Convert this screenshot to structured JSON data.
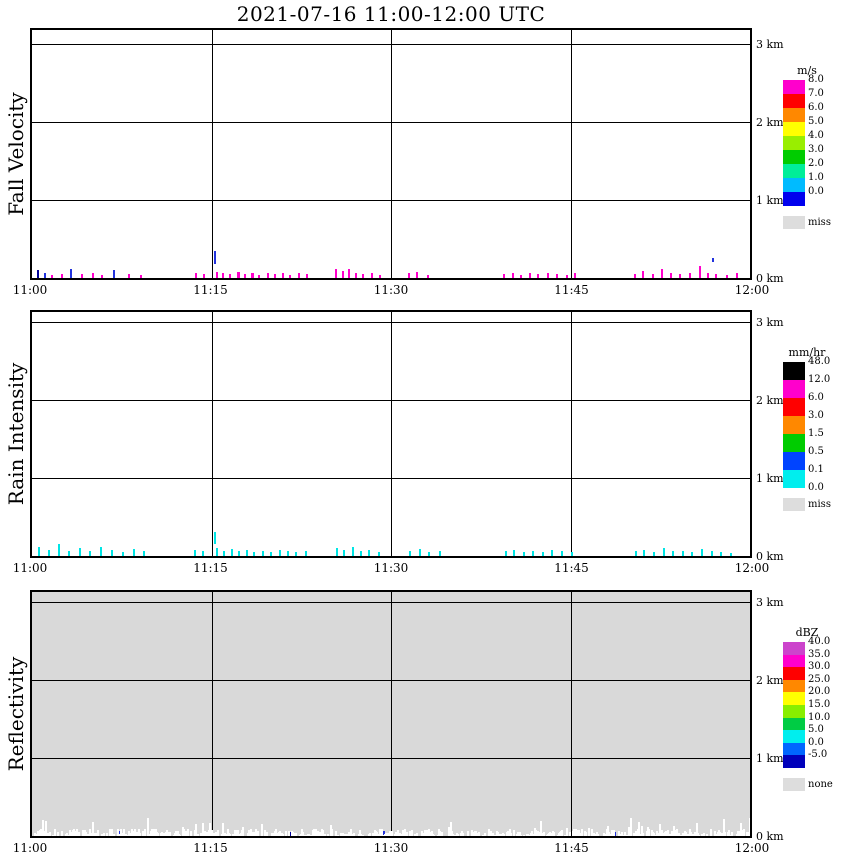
{
  "chart_data": {
    "type": "heatmap",
    "title": "2021-07-16  11:00-12:00 UTC",
    "x_axis": {
      "ticks": [
        {
          "min": 0,
          "label": "11:00"
        },
        {
          "min": 15,
          "label": "11:15"
        },
        {
          "min": 30,
          "label": "11:30"
        },
        {
          "min": 45,
          "label": "11:45"
        },
        {
          "min": 60,
          "label": "12:00"
        }
      ],
      "range_min": [
        0,
        60
      ]
    },
    "y_axis": {
      "ticks": [
        {
          "km": 3,
          "label": "3 km"
        },
        {
          "km": 2,
          "label": "2 km"
        },
        {
          "km": 1,
          "label": "1 km"
        },
        {
          "km": 0,
          "label": "0 km"
        }
      ],
      "range_km": [
        0,
        3
      ]
    },
    "panels": [
      {
        "id": "fall-velocity",
        "ylabel": "Fall Velocity",
        "bg": "#FFFFFF",
        "legend": {
          "header": "m/s",
          "colors": [
            "#FF00CC",
            "#FF0000",
            "#FF8800",
            "#FFFF00",
            "#99EE00",
            "#00CC00",
            "#00EE99",
            "#00BBFF",
            "#0000EE"
          ],
          "labels": [
            "8.0",
            "7.0",
            "6.0",
            "5.0",
            "4.0",
            "3.0",
            "2.0",
            "1.0",
            "0.0"
          ],
          "missing": {
            "label": "miss",
            "color": "#DDDDDD"
          }
        },
        "mark_colors": {
          "m": "#FF00CC",
          "b": "#2233DD",
          "n": "#000099"
        },
        "marks": [
          [
            0.4,
            0.1,
            "n"
          ],
          [
            1.0,
            0.06,
            "b"
          ],
          [
            1.6,
            0.04,
            "m"
          ],
          [
            2.4,
            0.05,
            "m"
          ],
          [
            3.2,
            0.12,
            "b"
          ],
          [
            4.1,
            0.05,
            "m"
          ],
          [
            5.0,
            0.07,
            "m"
          ],
          [
            5.8,
            0.04,
            "m"
          ],
          [
            6.8,
            0.1,
            "b"
          ],
          [
            8.0,
            0.05,
            "m"
          ],
          [
            9.0,
            0.04,
            "m"
          ],
          [
            13.6,
            0.06,
            "m"
          ],
          [
            14.3,
            0.05,
            "m"
          ],
          [
            15.2,
            0.35,
            "b",
            0.18
          ],
          [
            15.4,
            0.08,
            "m"
          ],
          [
            15.9,
            0.06,
            "m"
          ],
          [
            16.5,
            0.05,
            "m"
          ],
          [
            17.1,
            0.08,
            "m",
            0,
            3
          ],
          [
            17.7,
            0.05,
            "m"
          ],
          [
            18.3,
            0.06,
            "m",
            0,
            3
          ],
          [
            18.9,
            0.04,
            "m"
          ],
          [
            19.6,
            0.07,
            "m"
          ],
          [
            20.2,
            0.05,
            "m"
          ],
          [
            20.9,
            0.06,
            "m"
          ],
          [
            21.5,
            0.04,
            "m"
          ],
          [
            22.2,
            0.06,
            "m"
          ],
          [
            22.9,
            0.05,
            "m"
          ],
          [
            25.3,
            0.12,
            "m"
          ],
          [
            25.9,
            0.09,
            "m"
          ],
          [
            26.4,
            0.11,
            "m"
          ],
          [
            27.0,
            0.07,
            "m"
          ],
          [
            27.6,
            0.05,
            "m"
          ],
          [
            28.3,
            0.06,
            "m"
          ],
          [
            29.0,
            0.04,
            "m"
          ],
          [
            31.4,
            0.06,
            "m"
          ],
          [
            32.1,
            0.08,
            "m"
          ],
          [
            33.0,
            0.04,
            "m"
          ],
          [
            39.4,
            0.05,
            "m"
          ],
          [
            40.1,
            0.06,
            "m"
          ],
          [
            40.8,
            0.04,
            "m"
          ],
          [
            41.5,
            0.07,
            "m"
          ],
          [
            42.2,
            0.05,
            "m"
          ],
          [
            43.0,
            0.06,
            "m"
          ],
          [
            43.8,
            0.05,
            "m"
          ],
          [
            44.6,
            0.04,
            "m"
          ],
          [
            45.3,
            0.06,
            "m"
          ],
          [
            50.3,
            0.05,
            "m"
          ],
          [
            51.0,
            0.09,
            "m"
          ],
          [
            51.8,
            0.05,
            "m"
          ],
          [
            52.6,
            0.12,
            "m"
          ],
          [
            53.3,
            0.06,
            "m"
          ],
          [
            54.1,
            0.05,
            "m"
          ],
          [
            54.9,
            0.07,
            "m"
          ],
          [
            55.7,
            0.15,
            "m"
          ],
          [
            56.4,
            0.06,
            "m"
          ],
          [
            56.8,
            0.25,
            "b",
            0.2
          ],
          [
            57.1,
            0.05,
            "m"
          ],
          [
            58.0,
            0.04,
            "m"
          ],
          [
            58.8,
            0.06,
            "m"
          ]
        ]
      },
      {
        "id": "rain-intensity",
        "ylabel": "Rain Intensity",
        "bg": "#FFFFFF",
        "legend": {
          "header": "mm/hr",
          "colors": [
            "#000000",
            "#FF00CC",
            "#FF0000",
            "#FF8800",
            "#00CC00",
            "#0044FF",
            "#00EEEE"
          ],
          "labels": [
            "48.0",
            "12.0",
            "6.0",
            "3.0",
            "1.5",
            "0.5",
            "0.1",
            "0.0"
          ],
          "missing": {
            "label": "miss",
            "color": "#DDDDDD"
          }
        },
        "mark_colors": {
          "c": "#00E5E5",
          "b": "#2233DD"
        },
        "marks": [
          [
            0.5,
            0.12,
            "c"
          ],
          [
            1.3,
            0.08,
            "c"
          ],
          [
            2.2,
            0.15,
            "c"
          ],
          [
            3.0,
            0.06,
            "c"
          ],
          [
            3.9,
            0.1,
            "c"
          ],
          [
            4.8,
            0.07,
            "c"
          ],
          [
            5.7,
            0.12,
            "c"
          ],
          [
            6.6,
            0.08,
            "c"
          ],
          [
            7.5,
            0.05,
            "c"
          ],
          [
            8.4,
            0.09,
            "c"
          ],
          [
            9.3,
            0.06,
            "c"
          ],
          [
            13.5,
            0.08,
            "c"
          ],
          [
            14.2,
            0.06,
            "c"
          ],
          [
            15.2,
            0.3,
            "c",
            0.15
          ],
          [
            15.4,
            0.1,
            "c"
          ],
          [
            16.0,
            0.07,
            "c"
          ],
          [
            16.6,
            0.09,
            "c"
          ],
          [
            17.2,
            0.06,
            "c"
          ],
          [
            17.9,
            0.08,
            "c"
          ],
          [
            18.5,
            0.05,
            "c"
          ],
          [
            19.2,
            0.07,
            "c"
          ],
          [
            19.9,
            0.05,
            "c"
          ],
          [
            20.6,
            0.08,
            "c"
          ],
          [
            21.3,
            0.06,
            "c"
          ],
          [
            22.0,
            0.05,
            "c"
          ],
          [
            22.8,
            0.07,
            "c"
          ],
          [
            25.4,
            0.1,
            "c"
          ],
          [
            26.0,
            0.08,
            "c"
          ],
          [
            26.7,
            0.12,
            "c"
          ],
          [
            27.4,
            0.06,
            "c"
          ],
          [
            28.1,
            0.08,
            "c"
          ],
          [
            28.9,
            0.05,
            "c"
          ],
          [
            31.5,
            0.07,
            "c"
          ],
          [
            32.3,
            0.09,
            "c"
          ],
          [
            33.1,
            0.05,
            "c"
          ],
          [
            34.0,
            0.06,
            "c"
          ],
          [
            39.5,
            0.06,
            "c"
          ],
          [
            40.2,
            0.08,
            "c"
          ],
          [
            41.0,
            0.05,
            "c"
          ],
          [
            41.8,
            0.07,
            "c"
          ],
          [
            42.6,
            0.05,
            "c"
          ],
          [
            43.4,
            0.08,
            "c"
          ],
          [
            44.2,
            0.06,
            "c"
          ],
          [
            45.0,
            0.05,
            "c"
          ],
          [
            50.4,
            0.06,
            "c"
          ],
          [
            51.1,
            0.08,
            "c"
          ],
          [
            51.9,
            0.05,
            "c"
          ],
          [
            52.7,
            0.1,
            "c"
          ],
          [
            53.5,
            0.06,
            "c"
          ],
          [
            54.3,
            0.07,
            "c"
          ],
          [
            55.1,
            0.05,
            "c"
          ],
          [
            55.9,
            0.09,
            "c"
          ],
          [
            56.7,
            0.06,
            "c"
          ],
          [
            57.5,
            0.05,
            "c"
          ],
          [
            58.3,
            0.04,
            "c"
          ]
        ]
      },
      {
        "id": "reflectivity",
        "ylabel": "Reflectivity",
        "bg": "#D9D9D9",
        "legend": {
          "header": "dBZ",
          "colors": [
            "#CC44CC",
            "#FF00CC",
            "#FF0000",
            "#FF8800",
            "#FFFF00",
            "#88EE00",
            "#00CC44",
            "#00EEEE",
            "#0066FF",
            "#0000BB"
          ],
          "labels": [
            "40.0",
            "35.0",
            "30.0",
            "25.0",
            "20.0",
            "15.0",
            "10.0",
            "5.0",
            "0.0",
            "-5.0"
          ],
          "missing": {
            "label": "none",
            "color": "#DDDDDD"
          }
        },
        "mark_colors": {
          "w": "#FFFFFF",
          "b": "#2233DD",
          "n": "#000099"
        },
        "marks": [
          [
            7.2,
            0.06,
            "b"
          ],
          [
            21.5,
            0.05,
            "n"
          ],
          [
            29.3,
            0.06,
            "b"
          ],
          [
            48.6,
            0.05,
            "b"
          ],
          [
            57.3,
            0.04,
            "n"
          ]
        ],
        "noise": [
          {
            "seed": 20210716,
            "count": 650,
            "max_h_km": 0.08,
            "color": "#FFFFFF"
          },
          {
            "seed": 99,
            "count": 70,
            "max_h_km": 0.22,
            "color": "#FFFFFF"
          }
        ]
      }
    ]
  }
}
